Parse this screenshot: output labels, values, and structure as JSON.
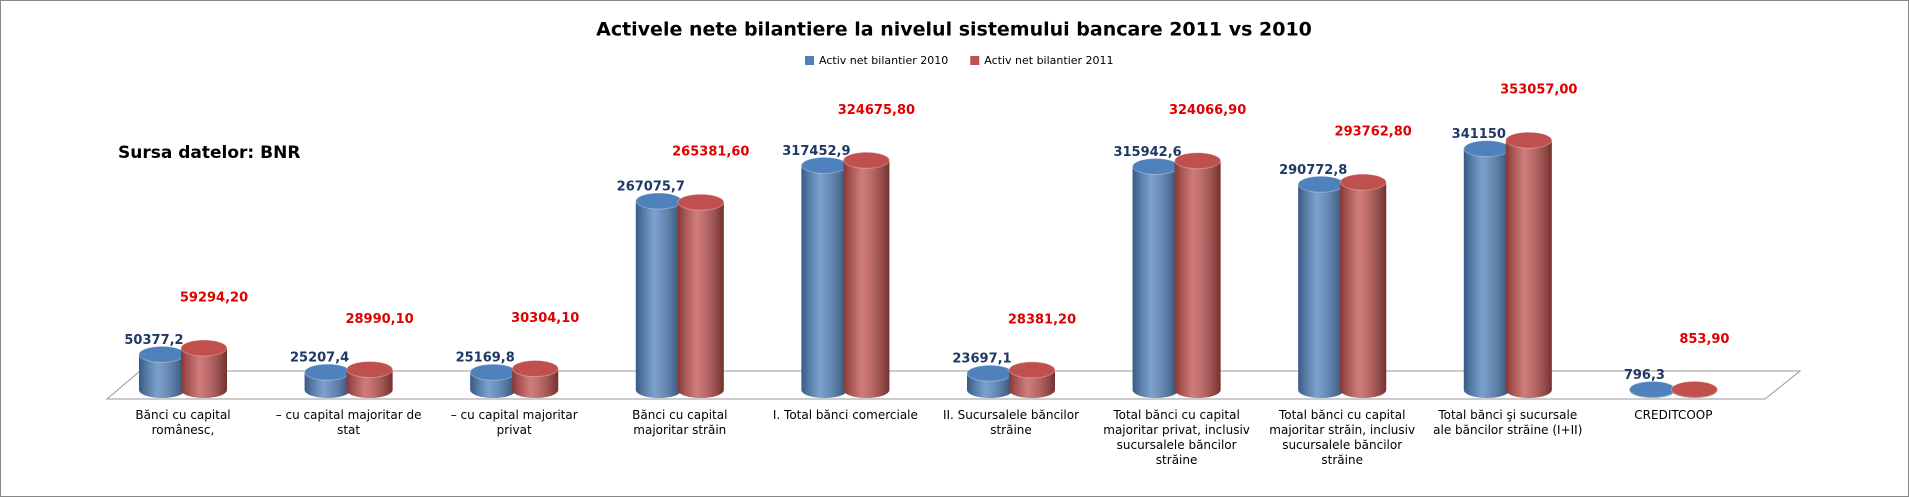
{
  "chart_data": {
    "type": "bar3d",
    "title": "Activele nete bilantiere la nivelul sistemului bancare 2011 vs 2010",
    "annotation": "Sursa datelor: BNR",
    "categories": [
      "Bănci cu capital românesc,",
      "– cu capital majoritar de stat",
      "– cu capital majoritar privat",
      "Bănci cu capital majoritar străin",
      "I. Total bănci comerciale",
      "II. Sucursalele băncilor străine",
      "Total bănci cu capital majoritar privat, inclusiv sucursalele băncilor străine",
      "Total bănci cu capital majoritar străin, inclusiv sucursalele băncilor străine",
      "Total bănci şi sucursale ale băncilor străine (I+II)",
      "CREDITCOOP"
    ],
    "series": [
      {
        "name": "Activ net bilantier 2010",
        "color": "#4f81bd",
        "label_color": "#1f3864",
        "values": [
          50377.2,
          25207.4,
          25169.8,
          267075.7,
          317452.9,
          23697.1,
          315942.6,
          290772.8,
          341150,
          796.3
        ],
        "value_labels": [
          "50377,2",
          "25207,4",
          "25169,8",
          "267075,7",
          "317452,9",
          "23697,1",
          "315942,6",
          "290772,8",
          "341150",
          "796,3"
        ]
      },
      {
        "name": "Activ net bilantier 2011",
        "color": "#c0504d",
        "label_color": "#e00000",
        "values": [
          59294.2,
          28990.1,
          30304.1,
          265381.6,
          324675.8,
          28381.2,
          324066.9,
          293762.8,
          353057,
          853.9
        ],
        "value_labels": [
          "59294,20",
          "28990,10",
          "30304,10",
          "265381,60",
          "324675,80",
          "28381,20",
          "324066,90",
          "293762,80",
          "353057,00",
          "853,90"
        ]
      }
    ],
    "ylim": [
      0,
      400000
    ],
    "legend": "top"
  }
}
